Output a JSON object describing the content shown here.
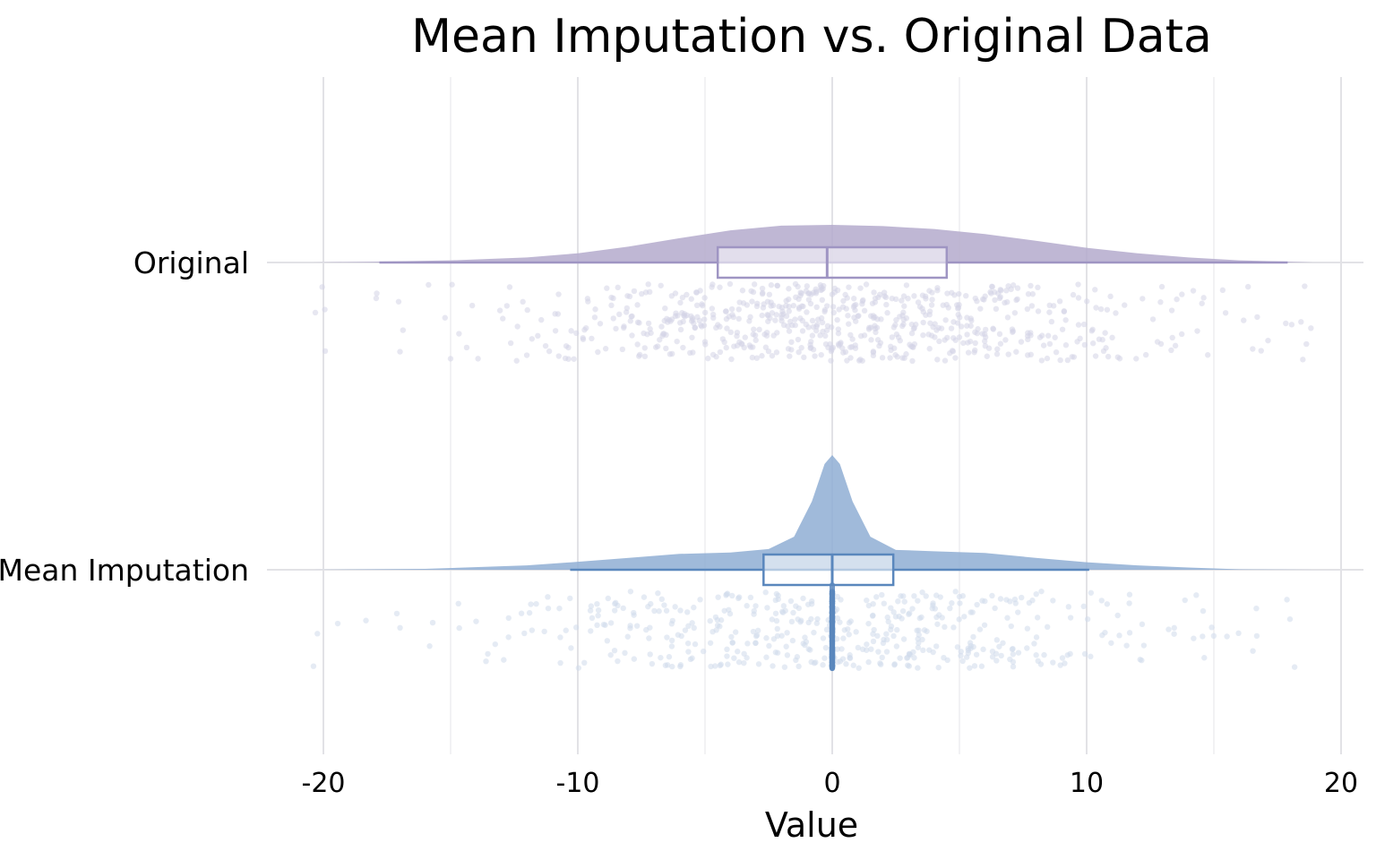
{
  "chart_data": {
    "type": "raincloud",
    "title": "Mean Imputation vs. Original Data",
    "xlabel": "Value",
    "ylabel": "",
    "xlim": [
      -22,
      21
    ],
    "xticks": [
      -20,
      -10,
      0,
      10,
      20
    ],
    "grid": true,
    "legend": "none",
    "series": [
      {
        "name": "Original",
        "color": "#9f95c3",
        "density_color": "#b4aacc",
        "point_color": "#d4d4e6",
        "box": {
          "whisker_low": -17.8,
          "q1": -4.5,
          "median": -0.2,
          "q3": 4.5,
          "whisker_high": 17.9,
          "min": -20.4,
          "max": 18.9
        },
        "density": [
          [
            -20.4,
            0.0
          ],
          [
            -18,
            0.02
          ],
          [
            -15,
            0.05
          ],
          [
            -12,
            0.12
          ],
          [
            -10,
            0.22
          ],
          [
            -8,
            0.38
          ],
          [
            -6,
            0.58
          ],
          [
            -4,
            0.77
          ],
          [
            -2,
            0.88
          ],
          [
            0,
            0.9
          ],
          [
            2,
            0.87
          ],
          [
            4,
            0.8
          ],
          [
            6,
            0.68
          ],
          [
            8,
            0.52
          ],
          [
            10,
            0.35
          ],
          [
            12,
            0.22
          ],
          [
            14,
            0.12
          ],
          [
            16,
            0.05
          ],
          [
            18,
            0.02
          ],
          [
            18.9,
            0.0
          ]
        ]
      },
      {
        "name": "Mean Imputation",
        "color": "#5a87bd",
        "density_color": "#8faed4",
        "point_color": "#cfdbeb",
        "box": {
          "whisker_low": -10.3,
          "q1": -2.7,
          "median": 0.0,
          "q3": 2.4,
          "whisker_high": 10.1,
          "min": -20.4,
          "max": 18.9
        },
        "density": [
          [
            -20.4,
            0.0
          ],
          [
            -16,
            0.02
          ],
          [
            -12,
            0.1
          ],
          [
            -10,
            0.18
          ],
          [
            -8,
            0.27
          ],
          [
            -6,
            0.36
          ],
          [
            -4,
            0.39
          ],
          [
            -2.5,
            0.47
          ],
          [
            -1.5,
            0.75
          ],
          [
            -0.8,
            1.55
          ],
          [
            -0.3,
            2.4
          ],
          [
            0,
            2.6
          ],
          [
            0.3,
            2.4
          ],
          [
            0.8,
            1.55
          ],
          [
            1.5,
            0.75
          ],
          [
            2.5,
            0.45
          ],
          [
            4,
            0.42
          ],
          [
            6,
            0.38
          ],
          [
            8,
            0.27
          ],
          [
            10,
            0.17
          ],
          [
            12,
            0.1
          ],
          [
            14,
            0.05
          ],
          [
            16,
            0.01
          ],
          [
            18.9,
            0.0
          ]
        ]
      }
    ]
  }
}
